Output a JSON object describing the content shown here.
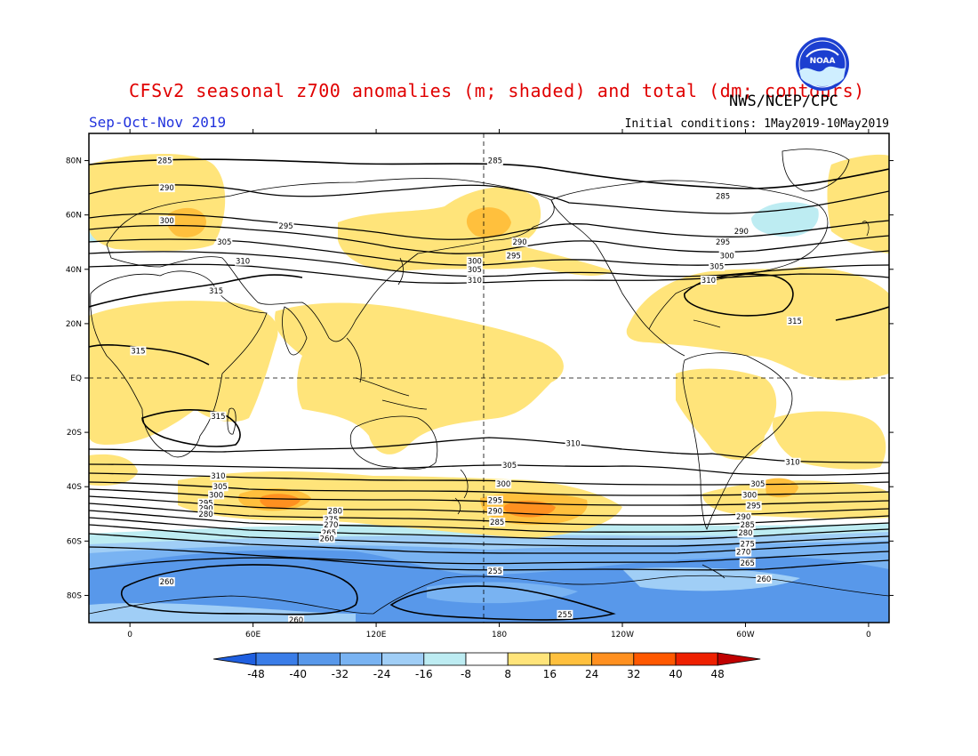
{
  "header": {
    "title": "CFSv2 seasonal z700 anomalies (m; shaded) and total (dm; contours)",
    "agency": "NWS/NCEP/CPC",
    "season": "Sep-Oct-Nov 2019",
    "initial_conditions": "Initial conditions: 1May2019-10May2019",
    "logo_text": "NOAA"
  },
  "map": {
    "latitude_labels": [
      "80N",
      "60N",
      "40N",
      "20N",
      "EQ",
      "20S",
      "40S",
      "60S",
      "80S"
    ],
    "latitude_values": [
      80,
      60,
      40,
      20,
      0,
      -20,
      -40,
      -60,
      -80
    ],
    "longitude_labels": [
      "0",
      "60E",
      "120E",
      "180",
      "120W",
      "60W",
      "0"
    ],
    "longitude_values": [
      0,
      60,
      120,
      180,
      240,
      300,
      360
    ],
    "lon_range": [
      -20,
      370
    ],
    "lat_range": [
      -90,
      90
    ],
    "contour_labels": [
      {
        "text": "285",
        "lon": 17,
        "lat": 80
      },
      {
        "text": "285",
        "lon": 178,
        "lat": 80
      },
      {
        "text": "285",
        "lon": 289,
        "lat": 67
      },
      {
        "text": "290",
        "lon": 18,
        "lat": 70
      },
      {
        "text": "290",
        "lon": 190,
        "lat": 50
      },
      {
        "text": "290",
        "lon": 298,
        "lat": 54
      },
      {
        "text": "300",
        "lon": 18,
        "lat": 58
      },
      {
        "text": "295",
        "lon": 76,
        "lat": 56
      },
      {
        "text": "295",
        "lon": 187,
        "lat": 45
      },
      {
        "text": "295",
        "lon": 289,
        "lat": 50
      },
      {
        "text": "300",
        "lon": 168,
        "lat": 43
      },
      {
        "text": "300",
        "lon": 291,
        "lat": 45
      },
      {
        "text": "305",
        "lon": 46,
        "lat": 50
      },
      {
        "text": "305",
        "lon": 168,
        "lat": 40
      },
      {
        "text": "305",
        "lon": 286,
        "lat": 41
      },
      {
        "text": "310",
        "lon": 55,
        "lat": 43
      },
      {
        "text": "310",
        "lon": 168,
        "lat": 36
      },
      {
        "text": "310",
        "lon": 282,
        "lat": 36
      },
      {
        "text": "315",
        "lon": 42,
        "lat": 32
      },
      {
        "text": "315",
        "lon": 4,
        "lat": 10
      },
      {
        "text": "315",
        "lon": 324,
        "lat": 21
      },
      {
        "text": "315",
        "lon": 43,
        "lat": -14
      },
      {
        "text": "310",
        "lon": 216,
        "lat": -24
      },
      {
        "text": "310",
        "lon": 323,
        "lat": -31
      },
      {
        "text": "305",
        "lon": 185,
        "lat": -32
      },
      {
        "text": "305",
        "lon": 306,
        "lat": -39
      },
      {
        "text": "310",
        "lon": 43,
        "lat": -36
      },
      {
        "text": "305",
        "lon": 44,
        "lat": -40
      },
      {
        "text": "300",
        "lon": 42,
        "lat": -43
      },
      {
        "text": "295",
        "lon": 37,
        "lat": -46
      },
      {
        "text": "290",
        "lon": 37,
        "lat": -48
      },
      {
        "text": "280",
        "lon": 37,
        "lat": -50
      },
      {
        "text": "300",
        "lon": 182,
        "lat": -39
      },
      {
        "text": "295",
        "lon": 178,
        "lat": -45
      },
      {
        "text": "290",
        "lon": 178,
        "lat": -49
      },
      {
        "text": "285",
        "lon": 179,
        "lat": -53
      },
      {
        "text": "300",
        "lon": 302,
        "lat": -43
      },
      {
        "text": "295",
        "lon": 304,
        "lat": -47
      },
      {
        "text": "290",
        "lon": 299,
        "lat": -51
      },
      {
        "text": "285",
        "lon": 301,
        "lat": -54
      },
      {
        "text": "280",
        "lon": 300,
        "lat": -57
      },
      {
        "text": "275",
        "lon": 301,
        "lat": -61
      },
      {
        "text": "270",
        "lon": 299,
        "lat": -64
      },
      {
        "text": "265",
        "lon": 301,
        "lat": -68
      },
      {
        "text": "260",
        "lon": 309,
        "lat": -74
      },
      {
        "text": "280",
        "lon": 100,
        "lat": -49
      },
      {
        "text": "275",
        "lon": 98,
        "lat": -52
      },
      {
        "text": "270",
        "lon": 98,
        "lat": -54
      },
      {
        "text": "265",
        "lon": 97,
        "lat": -57
      },
      {
        "text": "260",
        "lon": 96,
        "lat": -59
      },
      {
        "text": "255",
        "lon": 178,
        "lat": -71
      },
      {
        "text": "255",
        "lon": 212,
        "lat": -87
      },
      {
        "text": "260",
        "lon": 18,
        "lat": -75
      },
      {
        "text": "260",
        "lon": 81,
        "lat": -89
      }
    ]
  },
  "colorbar": {
    "labels": [
      "-48",
      "-40",
      "-32",
      "-24",
      "-16",
      "-8",
      "8",
      "16",
      "24",
      "32",
      "40",
      "48"
    ],
    "colors": [
      "#1f5fe0",
      "#3a7de8",
      "#5898ea",
      "#79b3f2",
      "#a0cef6",
      "#bdecf2",
      "#ffffff",
      "#ffe47a",
      "#ffc03d",
      "#ff9020",
      "#ff5800",
      "#ee2000",
      "#c00000"
    ]
  }
}
